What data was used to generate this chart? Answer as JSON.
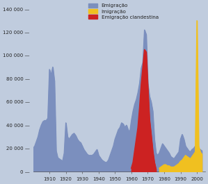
{
  "background_color": "#c0ccde",
  "ylim": [
    0,
    145000
  ],
  "yticks": [
    0,
    20000,
    40000,
    60000,
    80000,
    100000,
    120000,
    140000
  ],
  "ytick_labels": [
    "0 —",
    "20 000 —",
    "40 000 —",
    "60 000 —",
    "80 000 —",
    "100 000 —",
    "120 000 —",
    "140 000 —"
  ],
  "emigracao_color": "#7b8fbe",
  "imigracao_color": "#f0c020",
  "clandestina_color": "#cc2222",
  "legend_labels": [
    "Emigração",
    "Imigração",
    "Emigração clandestina"
  ],
  "emigracao_years": [
    1900,
    1901,
    1902,
    1903,
    1904,
    1905,
    1906,
    1907,
    1908,
    1909,
    1910,
    1911,
    1912,
    1913,
    1914,
    1915,
    1916,
    1917,
    1918,
    1919,
    1920,
    1921,
    1922,
    1923,
    1924,
    1925,
    1926,
    1927,
    1928,
    1929,
    1930,
    1931,
    1932,
    1933,
    1934,
    1935,
    1936,
    1937,
    1938,
    1939,
    1940,
    1941,
    1942,
    1943,
    1944,
    1945,
    1946,
    1947,
    1948,
    1949,
    1950,
    1951,
    1952,
    1953,
    1954,
    1955,
    1956,
    1957,
    1958,
    1959,
    1960,
    1961,
    1962,
    1963,
    1964,
    1965,
    1966,
    1967,
    1968,
    1969,
    1970,
    1971,
    1972,
    1973,
    1974,
    1975,
    1976,
    1977,
    1978,
    1979,
    1980,
    1981,
    1982,
    1983,
    1984,
    1985,
    1986,
    1987,
    1988,
    1989,
    1990,
    1991,
    1992,
    1993,
    1994,
    1995,
    1996,
    1997,
    1998,
    1999,
    2000,
    2001,
    2002,
    2003
  ],
  "emigracao_values": [
    20000,
    22000,
    26000,
    30000,
    36000,
    40000,
    43000,
    44000,
    44000,
    46000,
    88000,
    83000,
    90000,
    78000,
    18000,
    12000,
    11000,
    10000,
    9000,
    16000,
    42000,
    30000,
    28000,
    30000,
    32000,
    33000,
    31000,
    28000,
    26000,
    25000,
    22000,
    19000,
    17000,
    15000,
    14000,
    14000,
    14000,
    15000,
    17000,
    19000,
    14000,
    12000,
    10000,
    9000,
    8000,
    8000,
    10000,
    14000,
    18000,
    22000,
    28000,
    32000,
    36000,
    38000,
    42000,
    41000,
    38000,
    40000,
    36000,
    34000,
    44000,
    52000,
    58000,
    62000,
    68000,
    76000,
    89000,
    94000,
    122000,
    118000,
    76000,
    65000,
    60000,
    52000,
    28000,
    16000,
    14000,
    16000,
    20000,
    24000,
    22000,
    20000,
    18000,
    16000,
    13000,
    12000,
    11000,
    13000,
    15000,
    17000,
    28000,
    32000,
    28000,
    22000,
    20000,
    18000,
    17000,
    19000,
    20000,
    22000,
    22000,
    20000,
    19000,
    18000
  ],
  "clandestina_years": [
    1960,
    1961,
    1962,
    1963,
    1964,
    1965,
    1966,
    1967,
    1968,
    1969,
    1970,
    1971,
    1972,
    1973,
    1974,
    1975
  ],
  "clandestina_values": [
    3000,
    8000,
    18000,
    28000,
    38000,
    55000,
    75000,
    90000,
    105000,
    103000,
    73000,
    45000,
    32000,
    18000,
    8000,
    2000
  ],
  "imigracao_years": [
    1977,
    1978,
    1979,
    1980,
    1981,
    1982,
    1983,
    1984,
    1985,
    1986,
    1987,
    1988,
    1989,
    1990,
    1991,
    1992,
    1993,
    1994,
    1995,
    1996,
    1997,
    1998,
    1999,
    2000,
    2001,
    2002,
    2003
  ],
  "imigracao_values": [
    3000,
    4000,
    5000,
    6000,
    6000,
    5000,
    5000,
    4000,
    4000,
    4000,
    5000,
    6000,
    7000,
    9000,
    10000,
    12000,
    14000,
    13000,
    12000,
    11000,
    13000,
    15000,
    17000,
    130000,
    22000,
    17000,
    15000
  ]
}
